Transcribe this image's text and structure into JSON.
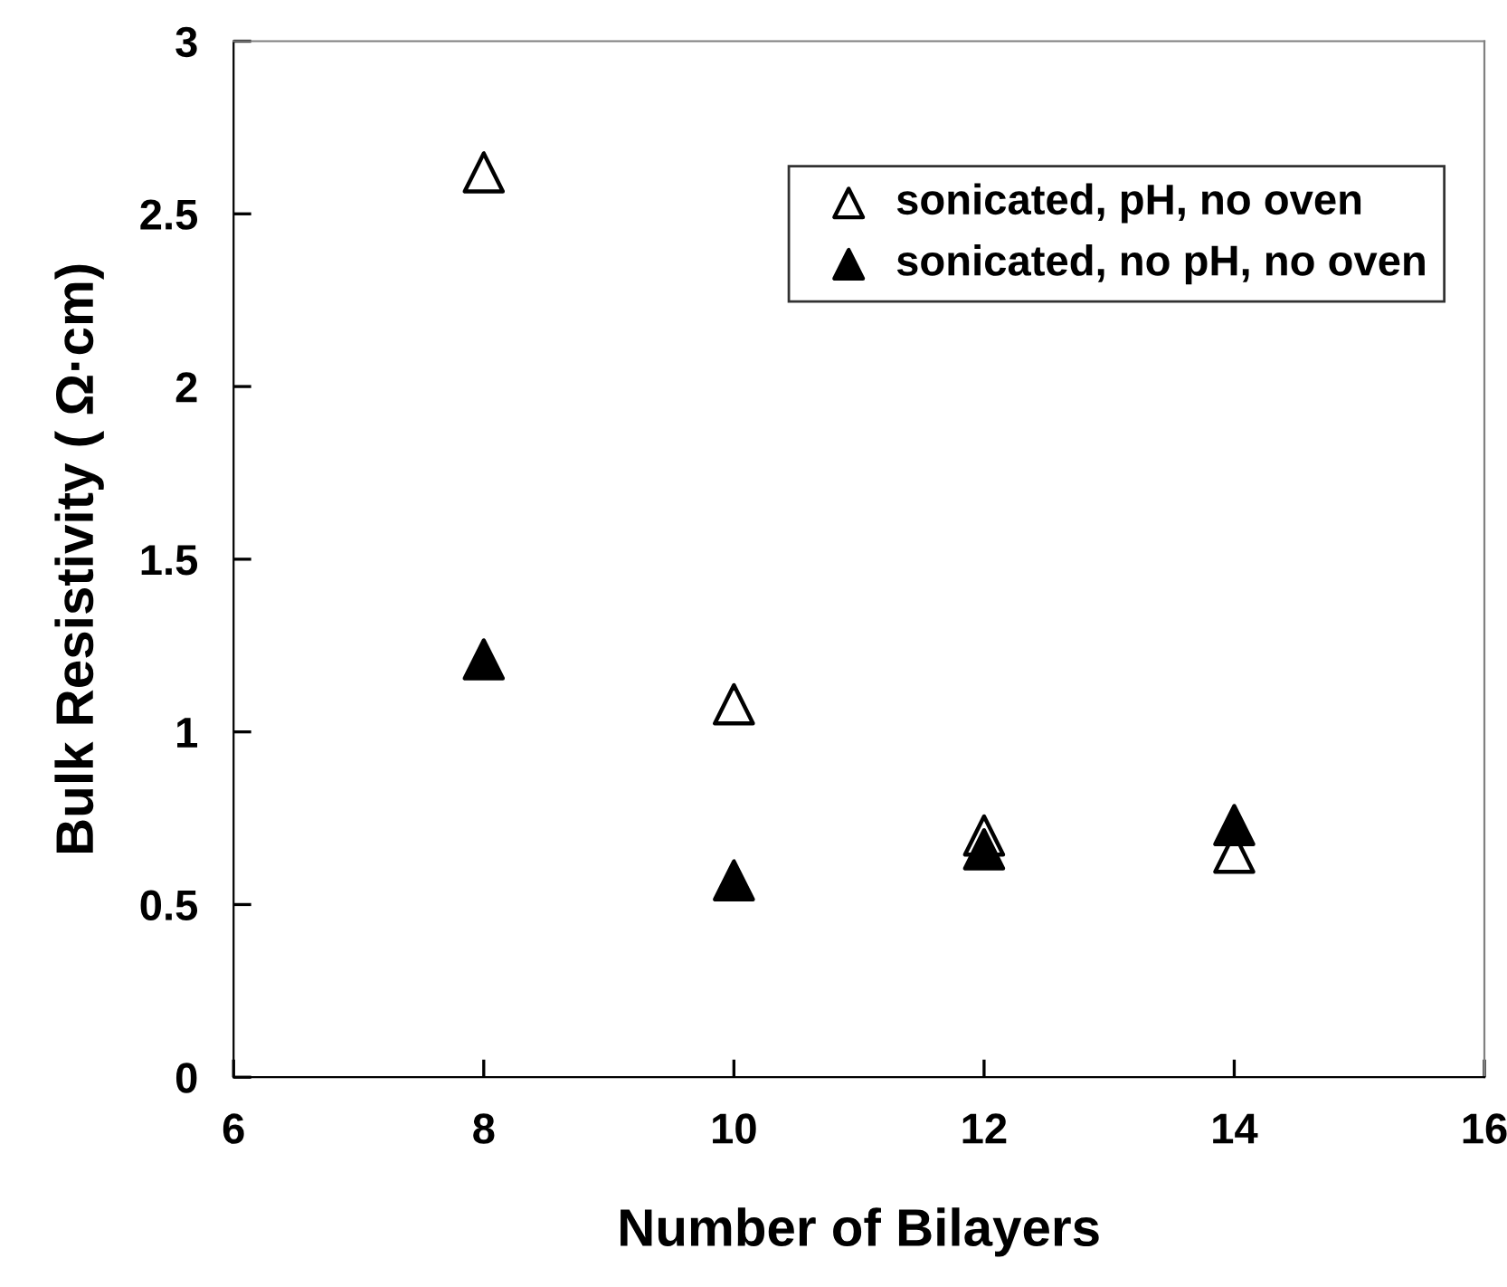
{
  "chart_data": {
    "type": "scatter",
    "xlabel": "Number of Bilayers",
    "ylabel": "Bulk Resistivity ( Ω·cm)",
    "x": [
      8,
      10,
      12,
      14
    ],
    "series": [
      {
        "name": "sonicated, pH, no oven",
        "color": "#ffffff",
        "values": [
          2.62,
          1.08,
          0.7,
          0.65
        ]
      },
      {
        "name": "sonicated, no pH, no oven",
        "color": "#000000",
        "values": [
          1.21,
          0.57,
          0.66,
          0.73
        ]
      }
    ],
    "marker": "triangle",
    "xlim": [
      6,
      16
    ],
    "xticks": [
      6,
      8,
      10,
      12,
      14,
      16
    ],
    "ylim": [
      0,
      3
    ],
    "yticks": [
      0,
      0.5,
      1,
      1.5,
      2,
      2.5,
      3
    ],
    "grid": false,
    "legend": "top right"
  }
}
